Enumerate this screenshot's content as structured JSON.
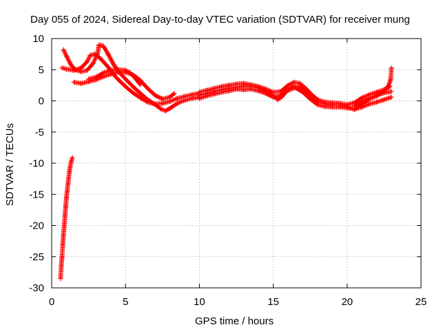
{
  "colors": {
    "series": "#ff0000",
    "grid": "#a0a0a0",
    "axis": "#000000",
    "background": "#ffffff"
  },
  "chart_data": {
    "type": "scatter",
    "title": "Day 055 of 2024, Sidereal Day-to-day VTEC variation (SDTVAR) for receiver mung",
    "xlabel": "GPS time / hours",
    "ylabel": "SDTVAR / TECUs",
    "xlim": [
      0,
      25
    ],
    "ylim": [
      -30,
      10
    ],
    "xticks": [
      0,
      5,
      10,
      15,
      20,
      25
    ],
    "yticks": [
      -30,
      -25,
      -20,
      -15,
      -10,
      -5,
      0,
      5,
      10
    ],
    "x_tick_labels": [
      "0",
      "5",
      "10",
      "15",
      "20",
      "25"
    ],
    "y_tick_labels": [
      "-30",
      "-25",
      "-20",
      "-15",
      "-10",
      "-5",
      "0",
      "5",
      "10"
    ],
    "grid": true,
    "marker": "plus",
    "series": [
      {
        "name": "steep-low-track",
        "points": [
          [
            0.6,
            -28.5
          ],
          [
            0.65,
            -26.5
          ],
          [
            0.7,
            -25
          ],
          [
            0.75,
            -23
          ],
          [
            0.8,
            -21.5
          ],
          [
            0.85,
            -20
          ],
          [
            0.9,
            -18.5
          ],
          [
            0.95,
            -17
          ],
          [
            1.0,
            -15.5
          ],
          [
            1.05,
            -14.5
          ],
          [
            1.1,
            -13.3
          ],
          [
            1.15,
            -12.3
          ],
          [
            1.2,
            -11.4
          ],
          [
            1.25,
            -10.6
          ],
          [
            1.3,
            -10
          ],
          [
            1.35,
            -9.5
          ],
          [
            1.4,
            -9.1
          ]
        ]
      },
      {
        "name": "track-a",
        "points": [
          [
            0.8,
            8.2
          ],
          [
            1.0,
            7.2
          ],
          [
            1.3,
            5.8
          ],
          [
            1.6,
            5.0
          ],
          [
            2.0,
            4.7
          ],
          [
            2.4,
            4.9
          ],
          [
            2.8,
            6.0
          ],
          [
            3.1,
            7.5
          ],
          [
            3.2,
            9.0
          ],
          [
            3.5,
            8.8
          ],
          [
            3.8,
            7.6
          ],
          [
            4.2,
            5.8
          ],
          [
            4.6,
            4.5
          ],
          [
            5.0,
            3.5
          ],
          [
            5.5,
            2.3
          ],
          [
            6.0,
            1.2
          ],
          [
            6.5,
            0.2
          ],
          [
            7.0,
            -0.6
          ],
          [
            7.4,
            -1.3
          ],
          [
            7.7,
            -1.6
          ],
          [
            8.0,
            -1.2
          ],
          [
            8.5,
            -0.4
          ],
          [
            9.0,
            0.1
          ],
          [
            9.5,
            0.4
          ],
          [
            10.0,
            0.6
          ]
        ]
      },
      {
        "name": "track-b",
        "points": [
          [
            0.7,
            5.3
          ],
          [
            1.0,
            5.1
          ],
          [
            1.5,
            4.9
          ],
          [
            2.0,
            5.3
          ],
          [
            2.4,
            6.3
          ],
          [
            2.6,
            7.3
          ],
          [
            2.9,
            7.5
          ],
          [
            3.3,
            6.8
          ],
          [
            3.8,
            5.5
          ],
          [
            4.2,
            4.2
          ],
          [
            4.6,
            3.2
          ],
          [
            5.0,
            2.3
          ],
          [
            5.5,
            1.3
          ],
          [
            6.0,
            0.5
          ],
          [
            6.5,
            -0.2
          ],
          [
            7.0,
            -0.5
          ],
          [
            7.5,
            -0.4
          ],
          [
            8.0,
            -0.1
          ],
          [
            8.5,
            0.4
          ],
          [
            9.0,
            0.7
          ],
          [
            9.5,
            1.0
          ],
          [
            10.0,
            1.2
          ]
        ]
      },
      {
        "name": "track-c",
        "points": [
          [
            1.5,
            3.0
          ],
          [
            2.0,
            2.8
          ],
          [
            2.5,
            3.1
          ],
          [
            3.0,
            3.4
          ],
          [
            3.5,
            3.9
          ],
          [
            4.0,
            4.3
          ],
          [
            4.5,
            4.6
          ],
          [
            5.0,
            4.6
          ],
          [
            5.5,
            4.2
          ],
          [
            6.0,
            3.3
          ],
          [
            6.5,
            2.0
          ],
          [
            7.0,
            0.9
          ],
          [
            7.5,
            0.3
          ],
          [
            8.0,
            0.6
          ],
          [
            8.3,
            1.2
          ]
        ]
      },
      {
        "name": "track-d",
        "points": [
          [
            2.5,
            3.5
          ],
          [
            3.0,
            3.8
          ],
          [
            3.5,
            4.5
          ],
          [
            4.0,
            4.9
          ],
          [
            4.5,
            5.0
          ],
          [
            5.0,
            4.9
          ],
          [
            5.3,
            4.5
          ],
          [
            5.6,
            3.8
          ],
          [
            6.0,
            2.6
          ]
        ]
      },
      {
        "name": "track-e",
        "points": [
          [
            10.0,
            0.9
          ],
          [
            10.5,
            1.2
          ],
          [
            11.0,
            1.5
          ],
          [
            11.5,
            1.8
          ],
          [
            12.0,
            2.0
          ],
          [
            12.5,
            2.2
          ],
          [
            13.0,
            2.4
          ],
          [
            13.5,
            2.3
          ],
          [
            14.0,
            2.1
          ],
          [
            14.5,
            1.5
          ],
          [
            15.0,
            0.8
          ],
          [
            15.3,
            0.2
          ],
          [
            15.6,
            0.7
          ],
          [
            16.0,
            1.8
          ],
          [
            16.4,
            2.4
          ],
          [
            16.8,
            2.3
          ],
          [
            17.2,
            1.6
          ],
          [
            17.6,
            0.6
          ],
          [
            18.0,
            -0.2
          ],
          [
            18.5,
            -0.5
          ],
          [
            19.0,
            -0.6
          ],
          [
            19.5,
            -0.7
          ],
          [
            20.0,
            -0.9
          ],
          [
            20.5,
            -1.4
          ],
          [
            21.0,
            -0.5
          ],
          [
            21.5,
            0.3
          ],
          [
            22.0,
            0.8
          ],
          [
            22.5,
            1.6
          ],
          [
            22.8,
            2.4
          ],
          [
            22.95,
            3.5
          ],
          [
            23.0,
            5.3
          ]
        ]
      },
      {
        "name": "track-f",
        "points": [
          [
            10.0,
            1.4
          ],
          [
            10.5,
            1.7
          ],
          [
            11.0,
            2.0
          ],
          [
            11.5,
            2.3
          ],
          [
            12.0,
            2.5
          ],
          [
            12.5,
            2.7
          ],
          [
            13.0,
            2.8
          ],
          [
            13.5,
            2.6
          ],
          [
            14.0,
            2.3
          ],
          [
            14.5,
            1.9
          ],
          [
            15.0,
            1.4
          ],
          [
            15.5,
            1.5
          ],
          [
            16.0,
            2.5
          ],
          [
            16.4,
            3.0
          ],
          [
            16.8,
            2.8
          ],
          [
            17.2,
            2.0
          ],
          [
            17.6,
            1.0
          ],
          [
            18.0,
            0.2
          ],
          [
            18.5,
            -0.2
          ],
          [
            19.0,
            -0.3
          ],
          [
            19.5,
            -0.4
          ],
          [
            20.0,
            -0.6
          ],
          [
            20.5,
            -0.3
          ],
          [
            21.0,
            0.5
          ],
          [
            21.5,
            1.0
          ],
          [
            22.0,
            1.4
          ],
          [
            22.5,
            1.8
          ],
          [
            22.9,
            2.3
          ]
        ]
      },
      {
        "name": "track-g",
        "points": [
          [
            10.0,
            0.4
          ],
          [
            10.5,
            0.8
          ],
          [
            11.0,
            1.1
          ],
          [
            11.5,
            1.4
          ],
          [
            12.0,
            1.6
          ],
          [
            12.5,
            1.9
          ],
          [
            13.0,
            1.8
          ],
          [
            13.5,
            1.9
          ],
          [
            14.0,
            1.6
          ],
          [
            14.5,
            1.2
          ],
          [
            15.0,
            0.6
          ],
          [
            15.5,
            0.9
          ],
          [
            16.0,
            1.7
          ],
          [
            16.5,
            2.1
          ],
          [
            17.0,
            1.4
          ],
          [
            17.5,
            0.3
          ],
          [
            18.0,
            -0.6
          ],
          [
            18.5,
            -0.9
          ],
          [
            19.0,
            -1.0
          ],
          [
            19.5,
            -1.0
          ],
          [
            20.0,
            -1.1
          ],
          [
            20.5,
            -1.3
          ],
          [
            21.0,
            -1.0
          ],
          [
            21.5,
            -0.5
          ],
          [
            22.0,
            -0.2
          ],
          [
            22.5,
            0.2
          ],
          [
            23.0,
            0.6
          ]
        ]
      },
      {
        "name": "track-h",
        "points": [
          [
            20.5,
            -0.8
          ],
          [
            21.0,
            -0.2
          ],
          [
            21.5,
            0.4
          ],
          [
            22.0,
            0.9
          ],
          [
            22.5,
            1.3
          ],
          [
            23.0,
            1.5
          ]
        ]
      }
    ]
  }
}
